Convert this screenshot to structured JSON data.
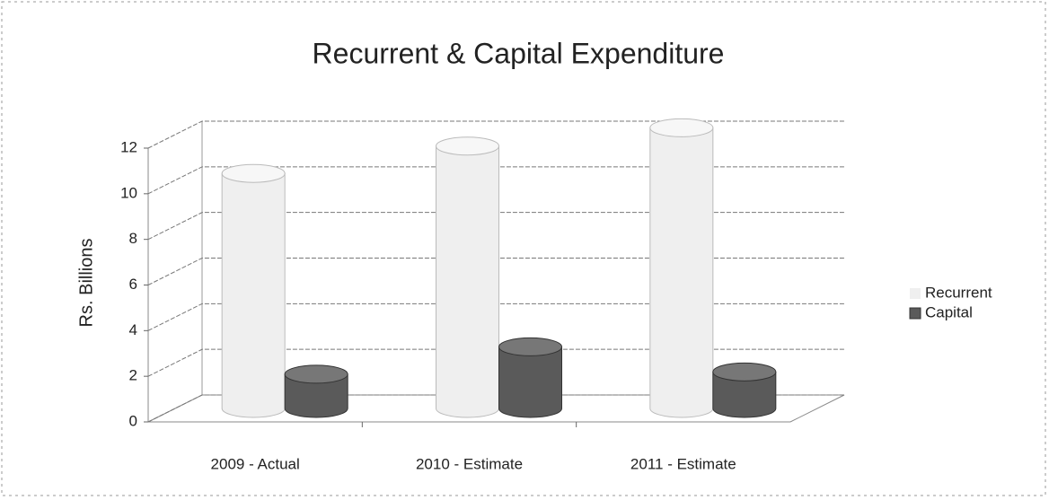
{
  "chart_data": {
    "type": "bar3d",
    "title": "Recurrent  & Capital Expenditure",
    "y_label": "Rs. Billions",
    "categories": [
      "2009 - Actual",
      "2010 - Estimate",
      "2011 - Estimate"
    ],
    "series": [
      {
        "name": "Recurrent",
        "color": "#efefef",
        "values": [
          10.3,
          11.5,
          12.3
        ]
      },
      {
        "name": "Capital",
        "color": "#5a5a5a",
        "values": [
          1.5,
          2.7,
          1.6
        ]
      }
    ],
    "ylim": [
      0,
      12
    ],
    "yticks": [
      0,
      2,
      4,
      6,
      8,
      10,
      12
    ],
    "grid": true,
    "legend": "right"
  }
}
